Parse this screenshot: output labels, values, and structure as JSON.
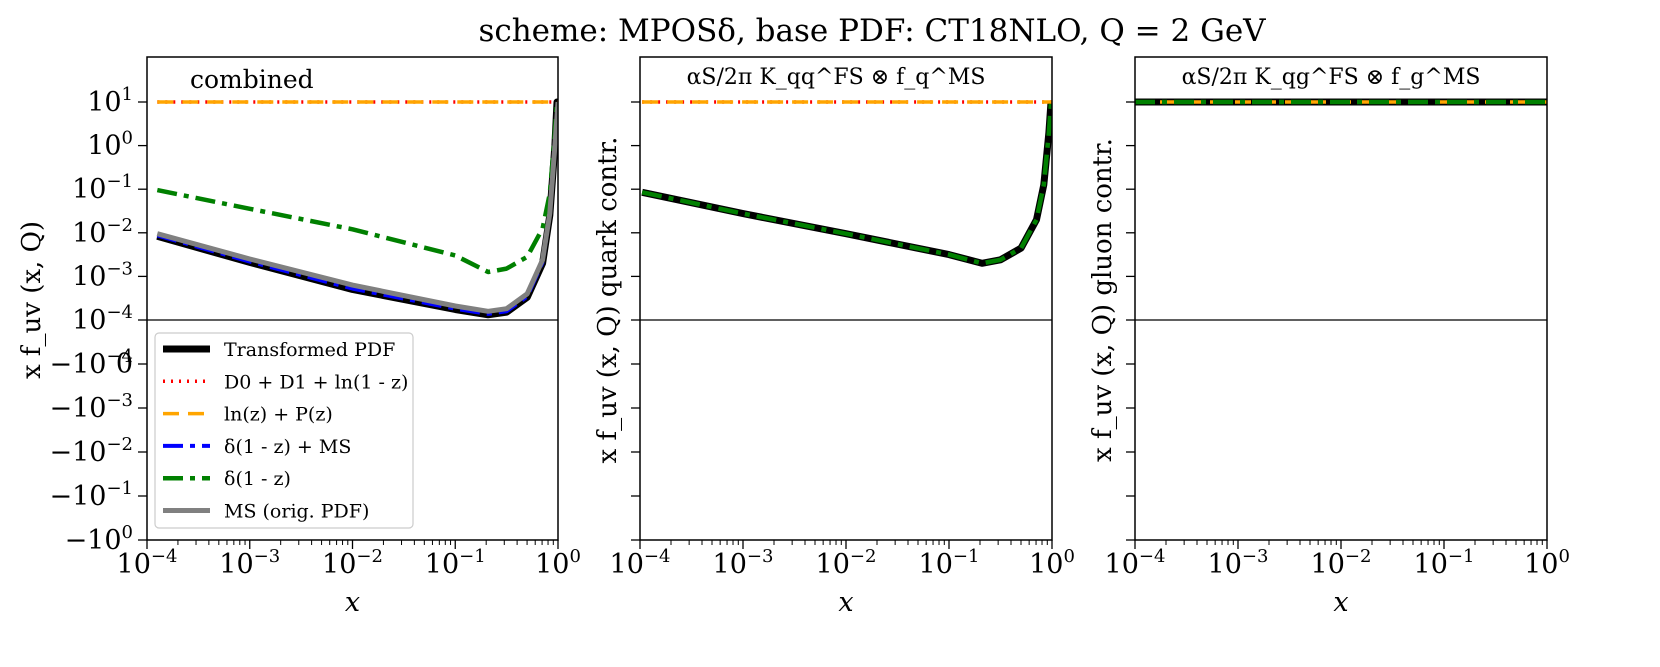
{
  "figure": {
    "title": "scheme: MPOSδ, base PDF: CT18NLO, Q = 2 GeV"
  },
  "chart_data": [
    {
      "type": "line",
      "panel_label": "combined",
      "xlabel": "x",
      "ylabel": "x f_uv (x, Q)",
      "x_scale": "log",
      "y_scale": "symlog",
      "xlim_log10": [
        -4,
        0
      ],
      "ylim_symlog": [
        -5,
        5
      ],
      "x_ticks": [
        "10^-4",
        "10^-3",
        "10^-2",
        "10^-1",
        "10^0"
      ],
      "y_ticks": [
        "10^1",
        "10^0",
        "10^-1",
        "10^-2",
        "10^-3",
        "10^-4",
        "0",
        "-10^-4",
        "-10^-3",
        "-10^-2",
        "-10^-1",
        "-10^0"
      ],
      "legend_loc": "lower-left",
      "series": [
        {
          "name": "Transformed PDF",
          "color": "#000000",
          "style": "solid",
          "points": [
            [
              -3.9,
              -1.92
            ],
            [
              -3,
              -1.32
            ],
            [
              -2,
              -0.7
            ],
            [
              -1,
              -0.24
            ],
            [
              -0.68,
              -0.12
            ],
            [
              -0.5,
              -0.18
            ],
            [
              -0.3,
              -0.52
            ],
            [
              -0.15,
              -1.3
            ],
            [
              -0.08,
              -2.4
            ],
            [
              -0.03,
              -4.0
            ],
            [
              -0.01,
              -5.0
            ],
            [
              0,
              -5.0
            ]
          ]
        },
        {
          "name": "D0 + D1 + ln(1 - z)",
          "color": "#ff0000",
          "style": "dotted",
          "points": [
            [
              -3.9,
              -5
            ],
            [
              0,
              -5
            ]
          ]
        },
        {
          "name": "ln(z) + P(z)",
          "color": "#ffa500",
          "style": "dashed",
          "points": [
            [
              -3.9,
              -5
            ],
            [
              0,
              -5
            ]
          ]
        },
        {
          "name": "δ(1 - z) + MS",
          "color": "#0000ff",
          "style": "dashdot",
          "points": [
            [
              -3.9,
              -1.94
            ],
            [
              -3,
              -1.34
            ],
            [
              -2,
              -0.72
            ],
            [
              -1,
              -0.26
            ],
            [
              -0.68,
              -0.14
            ],
            [
              -0.5,
              -0.2
            ],
            [
              -0.3,
              -0.54
            ],
            [
              -0.15,
              -1.32
            ],
            [
              -0.08,
              -2.42
            ],
            [
              -0.03,
              -4.0
            ],
            [
              0,
              -5.0
            ]
          ]
        },
        {
          "name": "δ(1 - z)",
          "color": "#008000",
          "style": "dashdot",
          "points": [
            [
              -3.9,
              -2.98
            ],
            [
              -3,
              -2.55
            ],
            [
              -2,
              -2.08
            ],
            [
              -1,
              -1.48
            ],
            [
              -0.68,
              -1.1
            ],
            [
              -0.5,
              -1.18
            ],
            [
              -0.3,
              -1.45
            ],
            [
              -0.15,
              -2.1
            ],
            [
              -0.08,
              -2.9
            ],
            [
              -0.04,
              -4.0
            ],
            [
              -0.01,
              -5.0
            ]
          ]
        },
        {
          "name": "MS (orig. PDF)",
          "color": "#808080",
          "style": "solid",
          "points": [
            [
              -3.9,
              -1.98
            ],
            [
              -3,
              -1.4
            ],
            [
              -2,
              -0.8
            ],
            [
              -1,
              -0.32
            ],
            [
              -0.68,
              -0.2
            ],
            [
              -0.5,
              -0.26
            ],
            [
              -0.3,
              -0.6
            ],
            [
              -0.15,
              -1.38
            ],
            [
              -0.08,
              -2.45
            ],
            [
              -0.03,
              -4.0
            ],
            [
              0,
              -5.0
            ]
          ]
        }
      ]
    },
    {
      "type": "line",
      "panel_label": "αS/2π K_qq^FS ⊗ f_q^MS",
      "xlabel": "x",
      "ylabel": "x f_uv (x, Q) quark contr.",
      "x_scale": "log",
      "y_scale": "symlog",
      "xlim_log10": [
        -4,
        0
      ],
      "x_ticks": [
        "10^-4",
        "10^-3",
        "10^-2",
        "10^-1",
        "10^0"
      ],
      "series": [
        {
          "name": "Transformed PDF",
          "color": "#000000",
          "style": "solid",
          "points": [
            [
              -3.98,
              -2.93
            ],
            [
              -3,
              -2.44
            ],
            [
              -2,
              -1.98
            ],
            [
              -1,
              -1.5
            ],
            [
              -0.68,
              -1.3
            ],
            [
              -0.5,
              -1.38
            ],
            [
              -0.3,
              -1.65
            ],
            [
              -0.15,
              -2.3
            ],
            [
              -0.08,
              -3.1
            ],
            [
              -0.03,
              -4.3
            ],
            [
              -0.01,
              -5.0
            ]
          ]
        },
        {
          "name": "D0 + D1 + ln(1 - z)",
          "color": "#ff0000",
          "style": "dotted",
          "points": [
            [
              -3.98,
              -5
            ],
            [
              0,
              -5
            ]
          ]
        },
        {
          "name": "ln(z) + P(z)",
          "color": "#ffa500",
          "style": "dashed",
          "points": [
            [
              -3.98,
              -5
            ],
            [
              0,
              -5
            ]
          ]
        },
        {
          "name": "δ(1 - z)",
          "color": "#008000",
          "style": "dashdot",
          "points": [
            [
              -3.98,
              -2.93
            ],
            [
              -3,
              -2.44
            ],
            [
              -2,
              -1.98
            ],
            [
              -1,
              -1.5
            ],
            [
              -0.68,
              -1.3
            ],
            [
              -0.5,
              -1.38
            ],
            [
              -0.3,
              -1.65
            ],
            [
              -0.15,
              -2.3
            ],
            [
              -0.08,
              -3.1
            ],
            [
              -0.03,
              -4.3
            ],
            [
              -0.01,
              -5.0
            ]
          ]
        }
      ]
    },
    {
      "type": "line",
      "panel_label": "αS/2π K_qg^FS ⊗ f_g^MS",
      "xlabel": "x",
      "ylabel": "x f_uv (x, Q) gluon contr.",
      "x_scale": "log",
      "y_scale": "symlog",
      "xlim_log10": [
        -4,
        0
      ],
      "x_ticks": [
        "10^-4",
        "10^-3",
        "10^-2",
        "10^-1",
        "10^0"
      ],
      "series": [
        {
          "name": "Transformed PDF",
          "color": "#000000",
          "style": "solid",
          "points": [
            [
              -4,
              -5
            ],
            [
              0,
              -5
            ]
          ]
        },
        {
          "name": "ln(z) + P(z)",
          "color": "#ffa500",
          "style": "dashed",
          "points": [
            [
              -4,
              -5
            ],
            [
              0,
              -5
            ]
          ]
        },
        {
          "name": "δ(1 - z)",
          "color": "#008000",
          "style": "dashdot",
          "points": [
            [
              -4,
              -5
            ],
            [
              0,
              -5
            ]
          ]
        }
      ]
    }
  ]
}
